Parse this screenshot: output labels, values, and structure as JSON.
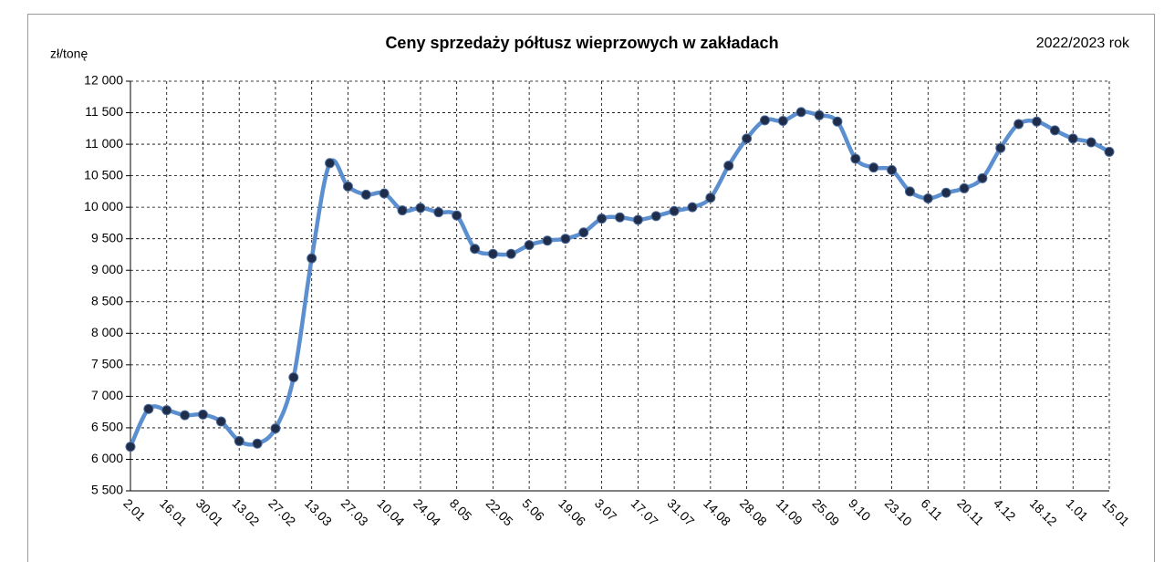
{
  "chart_data": {
    "type": "line",
    "title": "Ceny sprzedaży półtusz wieprzowych w zakładach",
    "subtitle": "2022/2023 rok",
    "y_label": "zł/tonę",
    "categories": [
      "2.01",
      null,
      "16.01",
      null,
      "30.01",
      null,
      "13.02",
      null,
      "27.02",
      null,
      "13.03",
      null,
      "27.03",
      null,
      "10.04",
      null,
      "24.04",
      null,
      "8.05",
      null,
      "22.05",
      null,
      "5.06",
      null,
      "19.06",
      null,
      "3.07",
      null,
      "17.07",
      null,
      "31.07",
      null,
      "14.08",
      null,
      "28.08",
      null,
      "11.09",
      null,
      "25.09",
      null,
      "9.10",
      null,
      "23.10",
      null,
      "6.11",
      null,
      "20.11",
      null,
      "4.12",
      null,
      "18.12",
      null,
      "1.01",
      null,
      "15.01"
    ],
    "series": [
      {
        "color": "#5b8fd0",
        "marker_color": "#1f2d4a",
        "values": [
          6200,
          6800,
          6780,
          6700,
          6710,
          6600,
          6290,
          6250,
          6490,
          7300,
          9190,
          10700,
          10330,
          10200,
          10220,
          9950,
          9990,
          9920,
          9870,
          9340,
          9260,
          9260,
          9400,
          9470,
          9500,
          9600,
          9820,
          9840,
          9800,
          9860,
          9940,
          10000,
          10150,
          10660,
          11090,
          11380,
          11370,
          11510,
          11460,
          11360,
          10770,
          10630,
          10590,
          10250,
          10140,
          10230,
          10300,
          10460,
          10940,
          11320,
          11360,
          11220,
          11090,
          11030,
          10880
        ]
      }
    ],
    "ylim": [
      5500,
      12000
    ],
    "yticks": [
      {
        "value": 5500,
        "label": "5 500"
      },
      {
        "value": 6000,
        "label": "6 000"
      },
      {
        "value": 6500,
        "label": "6 500"
      },
      {
        "value": 7000,
        "label": "7 000"
      },
      {
        "value": 7500,
        "label": "7 500"
      },
      {
        "value": 8000,
        "label": "8 000"
      },
      {
        "value": 8500,
        "label": "8 500"
      },
      {
        "value": 9000,
        "label": "9 000"
      },
      {
        "value": 9500,
        "label": "9 500"
      },
      {
        "value": 10000,
        "label": "10 000"
      },
      {
        "value": 10500,
        "label": "10 500"
      },
      {
        "value": 11000,
        "label": "11 000"
      },
      {
        "value": 11500,
        "label": "11 500"
      },
      {
        "value": 12000,
        "label": "12 000"
      }
    ],
    "grid": true
  }
}
